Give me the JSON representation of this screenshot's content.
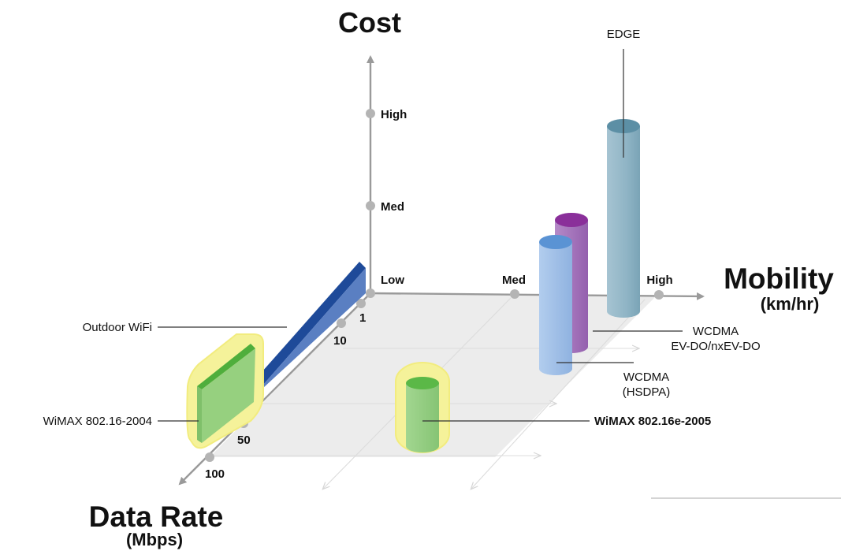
{
  "axes": {
    "cost": {
      "title": "Cost",
      "ticks": [
        "Low",
        "Med",
        "High"
      ]
    },
    "mobility": {
      "title": "Mobility",
      "unit": "(km/hr)",
      "ticks": [
        "Med",
        "High"
      ]
    },
    "data_rate": {
      "title": "Data Rate",
      "unit": "(Mbps)",
      "ticks": [
        "1",
        "10",
        "50",
        "100"
      ]
    }
  },
  "technologies": {
    "outdoor_wifi": "Outdoor WiFi",
    "wimax_2004": "WiMAX 802.16-2004",
    "wimax_2005": "WiMAX 802.16e-2005",
    "edge": "EDGE",
    "wcdma_evdo_line1": "WCDMA",
    "wcdma_evdo_line2": "EV-DO/nxEV-DO",
    "wcdma_hsdpa_line1": "WCDMA",
    "wcdma_hsdpa_line2": "(HSDPA)"
  },
  "colors": {
    "axis": "#9a9a9a",
    "floor": "#ececec",
    "wifi_blue": "#1f4fa0",
    "wimax_green": "#8cc97a",
    "highlight_yellow": "#f7f39a",
    "edge_teal": "#8fb4c5",
    "evdo_purple": "#a06bb8",
    "hsdpa_lightblue": "#9dbde6"
  }
}
